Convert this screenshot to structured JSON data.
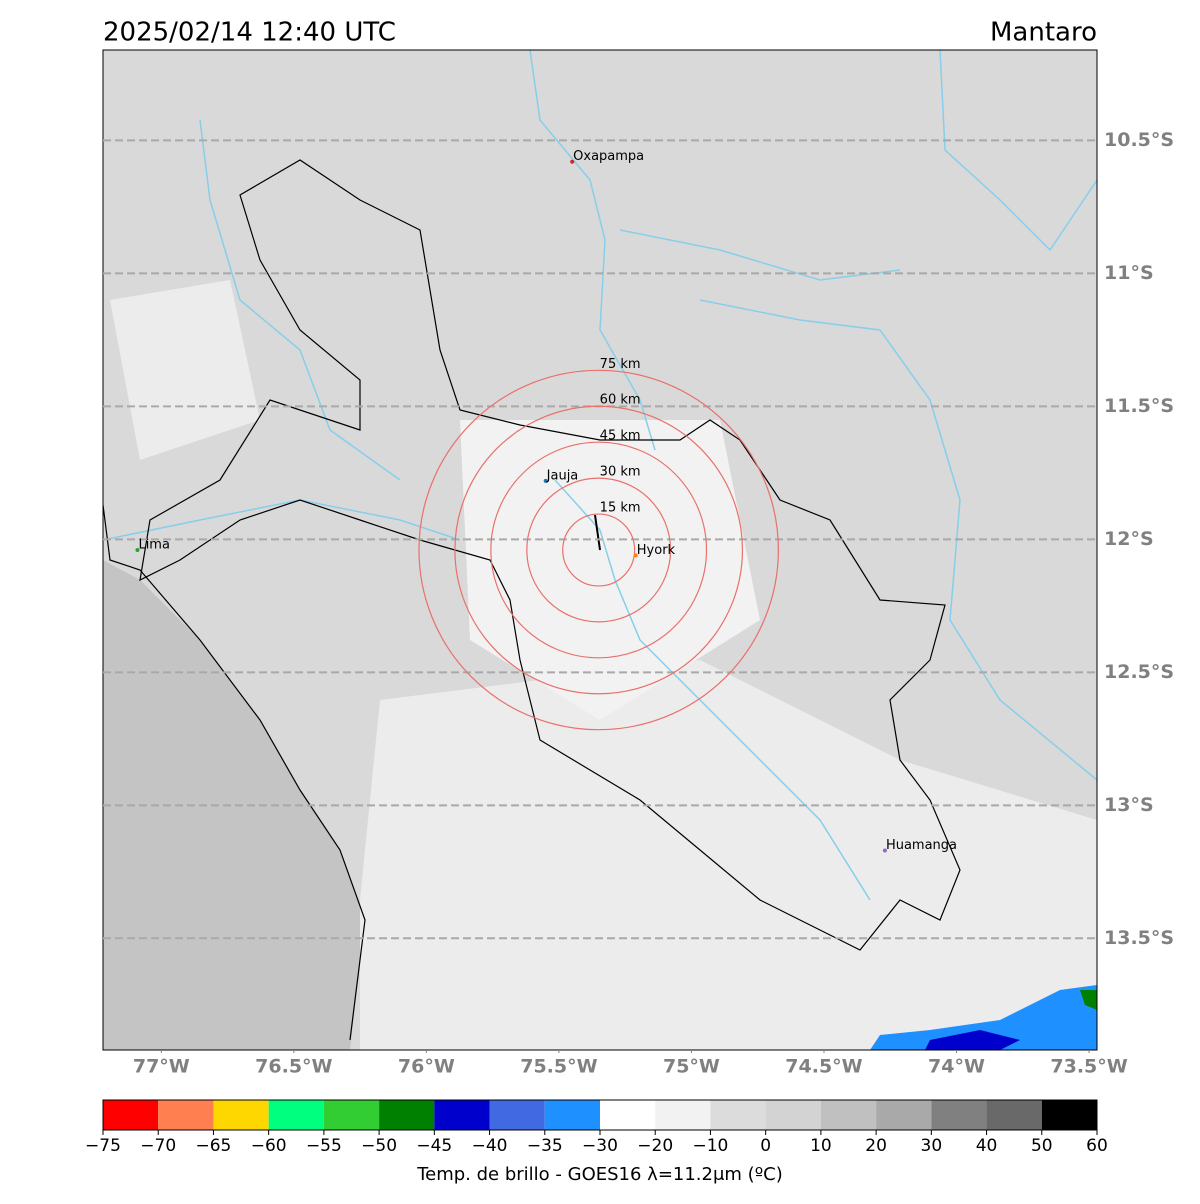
{
  "title": "2025/02/14 12:40 UTC",
  "region": "Mantaro",
  "map": {
    "xlim": [
      -77.22,
      -73.47
    ],
    "ylim": [
      -10.16,
      -13.92
    ],
    "xticks": [
      {
        "value": -77,
        "label": "77°W"
      },
      {
        "value": -76.5,
        "label": "76.5°W"
      },
      {
        "value": -76,
        "label": "76°W"
      },
      {
        "value": -75.5,
        "label": "75.5°W"
      },
      {
        "value": -75,
        "label": "75°W"
      },
      {
        "value": -74.5,
        "label": "74.5°W"
      },
      {
        "value": -74,
        "label": "74°W"
      },
      {
        "value": -73.5,
        "label": "73.5°W"
      }
    ],
    "yticks": [
      {
        "value": -10.5,
        "label": "10.5°S"
      },
      {
        "value": -11,
        "label": "11°S"
      },
      {
        "value": -11.5,
        "label": "11.5°S"
      },
      {
        "value": -12,
        "label": "12°S"
      },
      {
        "value": -12.5,
        "label": "12.5°S"
      },
      {
        "value": -13,
        "label": "13°S"
      },
      {
        "value": -13.5,
        "label": "13.5°S"
      }
    ],
    "grid": true
  },
  "cities": [
    {
      "name": "Oxapampa",
      "lon": -75.45,
      "lat": -10.58,
      "color": "#d62728"
    },
    {
      "name": "Jauja",
      "lon": -75.55,
      "lat": -11.78,
      "color": "#1f77b4"
    },
    {
      "name": "Hyork",
      "lon": -75.21,
      "lat": -12.06,
      "color": "#ff7f0e"
    },
    {
      "name": "Lima",
      "lon": -77.09,
      "lat": -12.04,
      "color": "#2ca02c"
    },
    {
      "name": "Huamanga",
      "lon": -74.27,
      "lat": -13.17,
      "color": "#9467bd"
    }
  ],
  "rings": {
    "center": [
      -75.35,
      -12.04
    ],
    "color": "#e8706c",
    "radii": [
      {
        "value": 15,
        "label": "15 km"
      },
      {
        "value": 30,
        "label": "30 km"
      },
      {
        "value": 45,
        "label": "45 km"
      },
      {
        "value": 60,
        "label": "60 km"
      },
      {
        "value": 75,
        "label": "75 km"
      }
    ]
  },
  "colorbar": {
    "label": "Temp. de brillo - GOES16 λ=11.2μm (ºC)",
    "colors": [
      "#ff0000",
      "#ff7f50",
      "#ffd700",
      "#00ff7f",
      "#32cd32",
      "#008000",
      "#0000cd",
      "#4169e1",
      "#1e90ff",
      "#ffffff",
      "#f2f2f2",
      "#dcdcdc",
      "#d3d3d3",
      "#c0c0c0",
      "#a9a9a9",
      "#808080",
      "#696969",
      "#000000"
    ],
    "ticks": [
      {
        "value": -75,
        "label": "−75"
      },
      {
        "value": -70,
        "label": "−70"
      },
      {
        "value": -65,
        "label": "−65"
      },
      {
        "value": -60,
        "label": "−60"
      },
      {
        "value": -55,
        "label": "−55"
      },
      {
        "value": -50,
        "label": "−50"
      },
      {
        "value": -45,
        "label": "−45"
      },
      {
        "value": -40,
        "label": "−40"
      },
      {
        "value": -35,
        "label": "−35"
      },
      {
        "value": -30,
        "label": "−30"
      },
      {
        "value": -20,
        "label": "−20"
      },
      {
        "value": -10,
        "label": "−10"
      },
      0,
      10,
      20,
      30,
      40,
      50,
      60
    ]
  }
}
